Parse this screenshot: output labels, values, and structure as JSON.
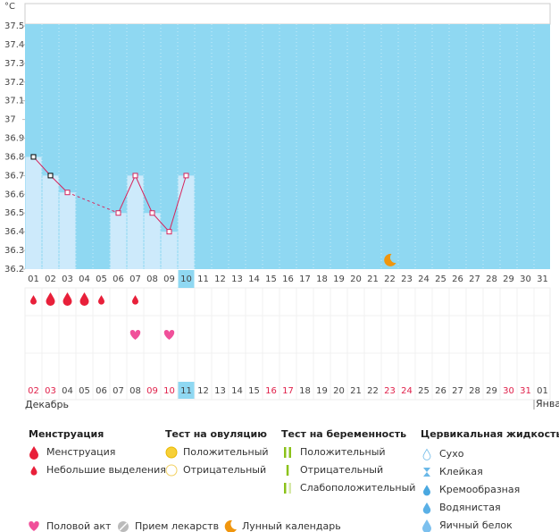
{
  "chart_data": {
    "type": "line",
    "y_label": "°C",
    "categories": [
      "01",
      "02",
      "03",
      "04",
      "05",
      "06",
      "07",
      "08",
      "09",
      "10",
      "11",
      "12",
      "13",
      "14",
      "15",
      "16",
      "17",
      "18",
      "19",
      "20",
      "21",
      "22",
      "23",
      "24",
      "25",
      "26",
      "27",
      "28",
      "29",
      "30",
      "31"
    ],
    "values": [
      36.8,
      36.7,
      36.61,
      null,
      null,
      36.5,
      36.7,
      36.5,
      36.4,
      36.7,
      null,
      null,
      null,
      null,
      null,
      null,
      null,
      null,
      null,
      null,
      null,
      null,
      null,
      null,
      null,
      null,
      null,
      null,
      null,
      null,
      null
    ],
    "ylim": [
      36.2,
      37.5
    ],
    "yticks": [
      36.2,
      36.3,
      36.4,
      36.5,
      36.6,
      36.7,
      36.8,
      36.9,
      37,
      37.1,
      37.2,
      37.3,
      37.4,
      37.5
    ],
    "color": "#d6245c",
    "bar_color": "#cdeafb",
    "background": "#8fd8f2",
    "selected": "10",
    "moon": "22"
  },
  "symbols": {
    "menstruation_heavy": [
      "02",
      "03",
      "04"
    ],
    "menstruation_light": [
      "01",
      "05",
      "07"
    ],
    "intercourse": [
      "07",
      "09"
    ]
  },
  "dates": {
    "labels": [
      "02",
      "03",
      "04",
      "05",
      "06",
      "07",
      "08",
      "09",
      "10",
      "11",
      "12",
      "13",
      "14",
      "15",
      "16",
      "17",
      "18",
      "19",
      "20",
      "21",
      "22",
      "23",
      "24",
      "25",
      "26",
      "27",
      "28",
      "29",
      "30",
      "31",
      "01"
    ],
    "weekend": [
      "02",
      "03",
      "09",
      "10",
      "16",
      "17",
      "23",
      "24",
      "30",
      "31"
    ],
    "selected": "11",
    "month_left": "Декабрь",
    "month_right": "Янва"
  },
  "legend": {
    "groups": [
      {
        "title": "Менструация",
        "items": [
          {
            "label": "Менструация",
            "icon": "drop-big"
          },
          {
            "label": "Небольшие выделения",
            "icon": "drop-small"
          }
        ]
      },
      {
        "title": "Тест на овуляцию",
        "items": [
          {
            "label": "Положительный",
            "icon": "circle-yellow"
          },
          {
            "label": "Отрицательный",
            "icon": "circle-outline"
          }
        ]
      },
      {
        "title": "Тест на беременность",
        "items": [
          {
            "label": "Положительный",
            "icon": "bars-two"
          },
          {
            "label": "Отрицательный",
            "icon": "bar-one"
          },
          {
            "label": "Слабоположительный",
            "icon": "bars-light"
          }
        ]
      },
      {
        "title": "Цервикальная жидкость",
        "items": [
          {
            "label": "Сухо",
            "icon": "drop-outline"
          },
          {
            "label": "Клейкая",
            "icon": "hourglass"
          },
          {
            "label": "Кремообразная",
            "icon": "drop-mid"
          },
          {
            "label": "Водянистая",
            "icon": "drop-blue"
          },
          {
            "label": "Яичный белок",
            "icon": "drop-round"
          }
        ]
      }
    ],
    "extra": [
      {
        "label": "Половой акт",
        "icon": "heart"
      },
      {
        "label": "Прием лекарств",
        "icon": "pill"
      },
      {
        "label": "Лунный календарь",
        "icon": "moon"
      }
    ]
  }
}
